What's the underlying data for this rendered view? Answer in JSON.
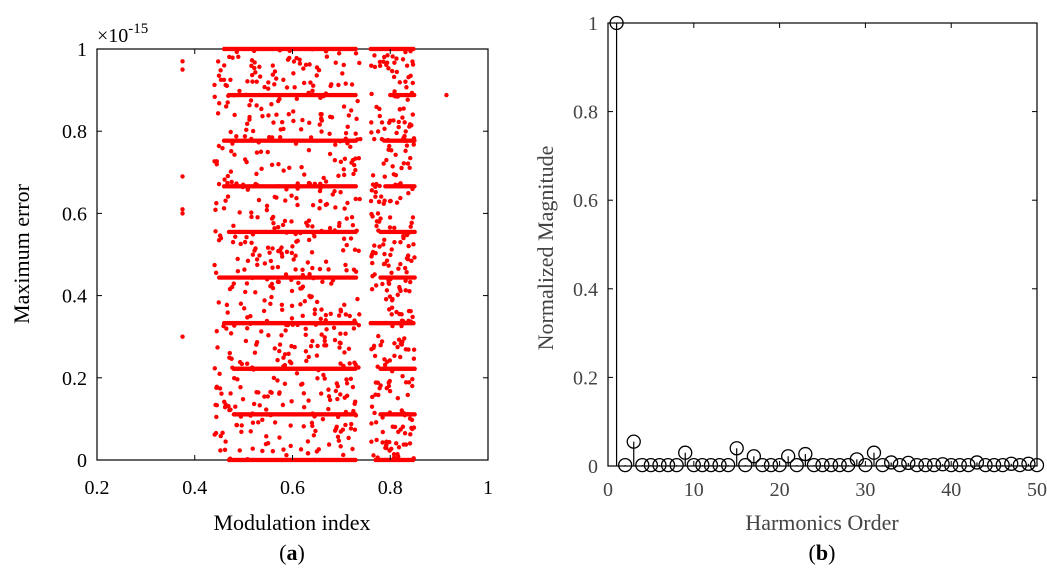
{
  "chart_data": [
    {
      "type": "scatter",
      "panel_label": "(a)",
      "panel_label_letter": "a",
      "xlabel": "Modulation index",
      "ylabel": "Maximum error",
      "exponent_label": "×10",
      "exponent_power": "-15",
      "xlim": [
        0.2,
        1.0
      ],
      "ylim": [
        0,
        1
      ],
      "xticks": [
        "0.2",
        "0.4",
        "0.6",
        "0.8",
        "1"
      ],
      "yticks": [
        "0",
        "0.2",
        "0.4",
        "0.6",
        "0.8",
        "1"
      ],
      "marker_color": "#ff0000",
      "grid": false,
      "bands": [
        {
          "y": 0.0,
          "x_ranges": [
            [
              0.47,
              0.73
            ],
            [
              0.77,
              0.85
            ]
          ]
        },
        {
          "y": 0.111,
          "x_ranges": [
            [
              0.48,
              0.73
            ],
            [
              0.78,
              0.85
            ]
          ]
        },
        {
          "y": 0.222,
          "x_ranges": [
            [
              0.48,
              0.73
            ],
            [
              0.78,
              0.85
            ]
          ]
        },
        {
          "y": 0.333,
          "x_ranges": [
            [
              0.46,
              0.73
            ],
            [
              0.76,
              0.85
            ]
          ]
        },
        {
          "y": 0.444,
          "x_ranges": [
            [
              0.45,
              0.73
            ],
            [
              0.78,
              0.85
            ]
          ]
        },
        {
          "y": 0.555,
          "x_ranges": [
            [
              0.47,
              0.73
            ],
            [
              0.78,
              0.85
            ]
          ]
        },
        {
          "y": 0.666,
          "x_ranges": [
            [
              0.46,
              0.73
            ],
            [
              0.79,
              0.85
            ]
          ]
        },
        {
          "y": 0.777,
          "x_ranges": [
            [
              0.46,
              0.73
            ],
            [
              0.79,
              0.85
            ]
          ]
        },
        {
          "y": 0.888,
          "x_ranges": [
            [
              0.47,
              0.73
            ],
            [
              0.8,
              0.85
            ]
          ]
        },
        {
          "y": 1.0,
          "x_ranges": [
            [
              0.46,
              0.73
            ],
            [
              0.76,
              0.85
            ]
          ]
        }
      ],
      "scatter_region": {
        "x_ranges": [
          [
            0.44,
            0.74
          ],
          [
            0.76,
            0.85
          ]
        ],
        "y_range": [
          0,
          1
        ]
      },
      "outliers": [
        [
          0.375,
          0.97
        ],
        [
          0.375,
          0.95
        ],
        [
          0.375,
          0.69
        ],
        [
          0.375,
          0.61
        ],
        [
          0.375,
          0.6
        ],
        [
          0.375,
          0.3
        ],
        [
          0.915,
          0.888
        ]
      ]
    },
    {
      "type": "stem",
      "panel_label": "(b)",
      "panel_label_letter": "b",
      "xlabel": "Harmonics Order",
      "ylabel": "Normalized Magnitude",
      "xlim": [
        0,
        50
      ],
      "ylim": [
        0,
        1
      ],
      "xticks": [
        "0",
        "10",
        "20",
        "30",
        "40",
        "50"
      ],
      "yticks": [
        "0",
        "0.2",
        "0.4",
        "0.6",
        "0.8",
        "1"
      ],
      "marker": "open-circle",
      "color": "#000000",
      "grid": false,
      "x": [
        1,
        2,
        3,
        4,
        5,
        6,
        7,
        8,
        9,
        10,
        11,
        12,
        13,
        14,
        15,
        16,
        17,
        18,
        19,
        20,
        21,
        22,
        23,
        24,
        25,
        26,
        27,
        28,
        29,
        30,
        31,
        32,
        33,
        34,
        35,
        36,
        37,
        38,
        39,
        40,
        41,
        42,
        43,
        44,
        45,
        46,
        47,
        48,
        49,
        50
      ],
      "values": [
        1.0,
        0.002,
        0.055,
        0.002,
        0.002,
        0.002,
        0.002,
        0.002,
        0.03,
        0.002,
        0.002,
        0.002,
        0.002,
        0.002,
        0.04,
        0.002,
        0.022,
        0.002,
        0.002,
        0.002,
        0.022,
        0.002,
        0.027,
        0.002,
        0.002,
        0.002,
        0.002,
        0.002,
        0.015,
        0.002,
        0.03,
        0.002,
        0.008,
        0.002,
        0.007,
        0.002,
        0.002,
        0.002,
        0.004,
        0.002,
        0.002,
        0.002,
        0.008,
        0.002,
        0.002,
        0.002,
        0.005,
        0.002,
        0.005,
        0.002
      ]
    }
  ]
}
